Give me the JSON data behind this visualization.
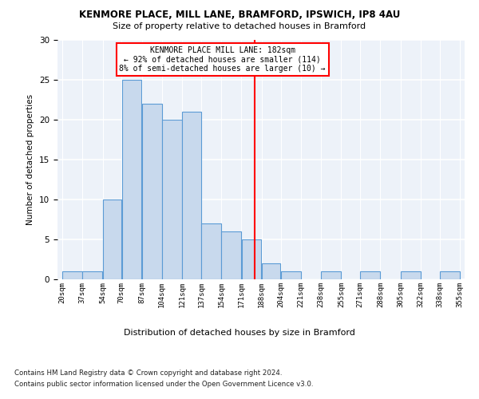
{
  "title1": "KENMORE PLACE, MILL LANE, BRAMFORD, IPSWICH, IP8 4AU",
  "title2": "Size of property relative to detached houses in Bramford",
  "xlabel": "Distribution of detached houses by size in Bramford",
  "ylabel": "Number of detached properties",
  "bin_labels": [
    "20sqm",
    "37sqm",
    "54sqm",
    "70sqm",
    "87sqm",
    "104sqm",
    "121sqm",
    "137sqm",
    "154sqm",
    "171sqm",
    "188sqm",
    "204sqm",
    "221sqm",
    "238sqm",
    "255sqm",
    "271sqm",
    "288sqm",
    "305sqm",
    "322sqm",
    "338sqm",
    "355sqm"
  ],
  "bin_edges": [
    20,
    37,
    54,
    70,
    87,
    104,
    121,
    137,
    154,
    171,
    188,
    204,
    221,
    238,
    255,
    271,
    288,
    305,
    322,
    338,
    355
  ],
  "bar_values": [
    1,
    1,
    10,
    25,
    22,
    20,
    21,
    7,
    6,
    5,
    2,
    1,
    0,
    1,
    0,
    1,
    0,
    1,
    0,
    1
  ],
  "bar_color": "#c8d9ed",
  "bar_edge_color": "#5b9bd5",
  "ref_line_x": 182,
  "ref_line_color": "red",
  "annotation_title": "KENMORE PLACE MILL LANE: 182sqm",
  "annotation_line1": "← 92% of detached houses are smaller (114)",
  "annotation_line2": "8% of semi-detached houses are larger (10) →",
  "annotation_box_color": "white",
  "annotation_box_edge_color": "red",
  "ylim": [
    0,
    30
  ],
  "yticks": [
    0,
    5,
    10,
    15,
    20,
    25,
    30
  ],
  "footer1": "Contains HM Land Registry data © Crown copyright and database right 2024.",
  "footer2": "Contains public sector information licensed under the Open Government Licence v3.0.",
  "bg_color": "#edf2f9",
  "grid_color": "white"
}
